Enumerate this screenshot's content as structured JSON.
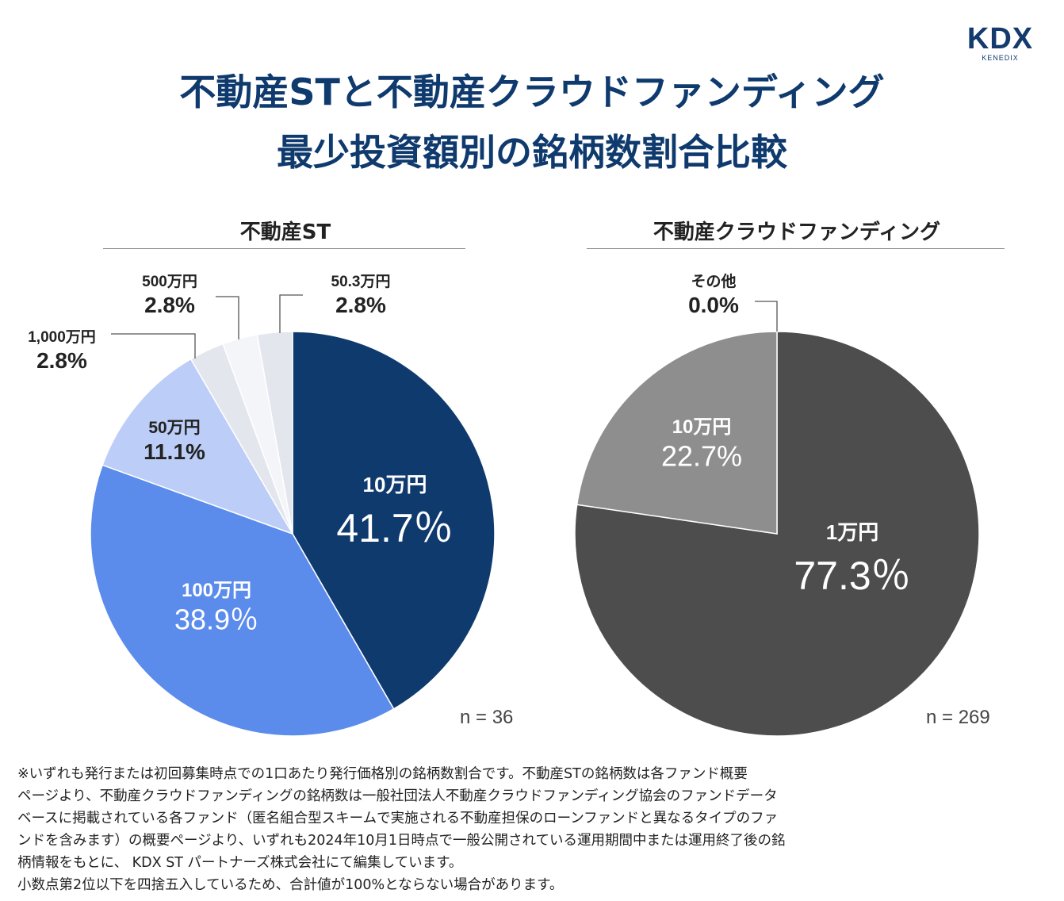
{
  "logo": {
    "mark": "KDX",
    "sub": "KENEDIX"
  },
  "title": {
    "line1": "不動産STと不動産クラウドファンディング",
    "line2": "最少投資額別の銘柄数割合比較"
  },
  "colors": {
    "title": "#0f3a6e"
  },
  "chart_data": [
    {
      "type": "pie",
      "title": "不動産ST",
      "n_label": "n = 36",
      "start": "top, clockwise",
      "slices": [
        {
          "label": "10万円",
          "pct_label": "41.7％",
          "value": 41.7,
          "color": "#0f3a6e",
          "label_position": "inside"
        },
        {
          "label": "100万円",
          "pct_label": "38.9％",
          "value": 38.9,
          "color": "#5b8cec",
          "label_position": "inside"
        },
        {
          "label": "50万円",
          "pct_label": "11.1%",
          "value": 11.1,
          "color": "#bccdf7",
          "label_position": "inside"
        },
        {
          "label": "1,000万円",
          "pct_label": "2.8%",
          "value": 2.8,
          "color": "#e3e6ed",
          "label_position": "outside"
        },
        {
          "label": "500万円",
          "pct_label": "2.8%",
          "value": 2.8,
          "color": "#f3f5f9",
          "label_position": "outside"
        },
        {
          "label": "50.3万円",
          "pct_label": "2.8%",
          "value": 2.8,
          "color": "#e3e6ed",
          "label_position": "outside"
        }
      ]
    },
    {
      "type": "pie",
      "title": "不動産クラウドファンディング",
      "n_label": "n = 269",
      "start": "top, clockwise",
      "slices": [
        {
          "label": "1万円",
          "pct_label": "77.3％",
          "value": 77.3,
          "color": "#4d4d4d",
          "label_position": "inside"
        },
        {
          "label": "10万円",
          "pct_label": "22.7%",
          "value": 22.7,
          "color": "#8e8e8e",
          "label_position": "inside"
        },
        {
          "label": "その他",
          "pct_label": "0.0%",
          "value": 0.0,
          "color": "#bdbdbd",
          "label_position": "outside"
        }
      ]
    }
  ],
  "notes": [
    "※いずれも発行または初回募集時点での1口あたり発行価格別の銘柄数割合です。不動産STの銘柄数は各ファンド概要",
    "ページより、不動産クラウドファンディングの銘柄数は一般社団法人不動産クラウドファンディング協会のファンドデータ",
    "ベースに掲載されている各ファンド（匿名組合型スキームで実施される不動産担保のローンファンドと異なるタイプのファ",
    "ンドを含みます）の概要ページより、いずれも2024年10月1日時点で一般公開されている運用期間中または運用終了後の銘",
    "柄情報をもとに、 KDX ST パートナーズ株式会社にて編集しています。",
    "小数点第2位以下を四捨五入しているため、合計値が100%とならない場合があります。"
  ]
}
